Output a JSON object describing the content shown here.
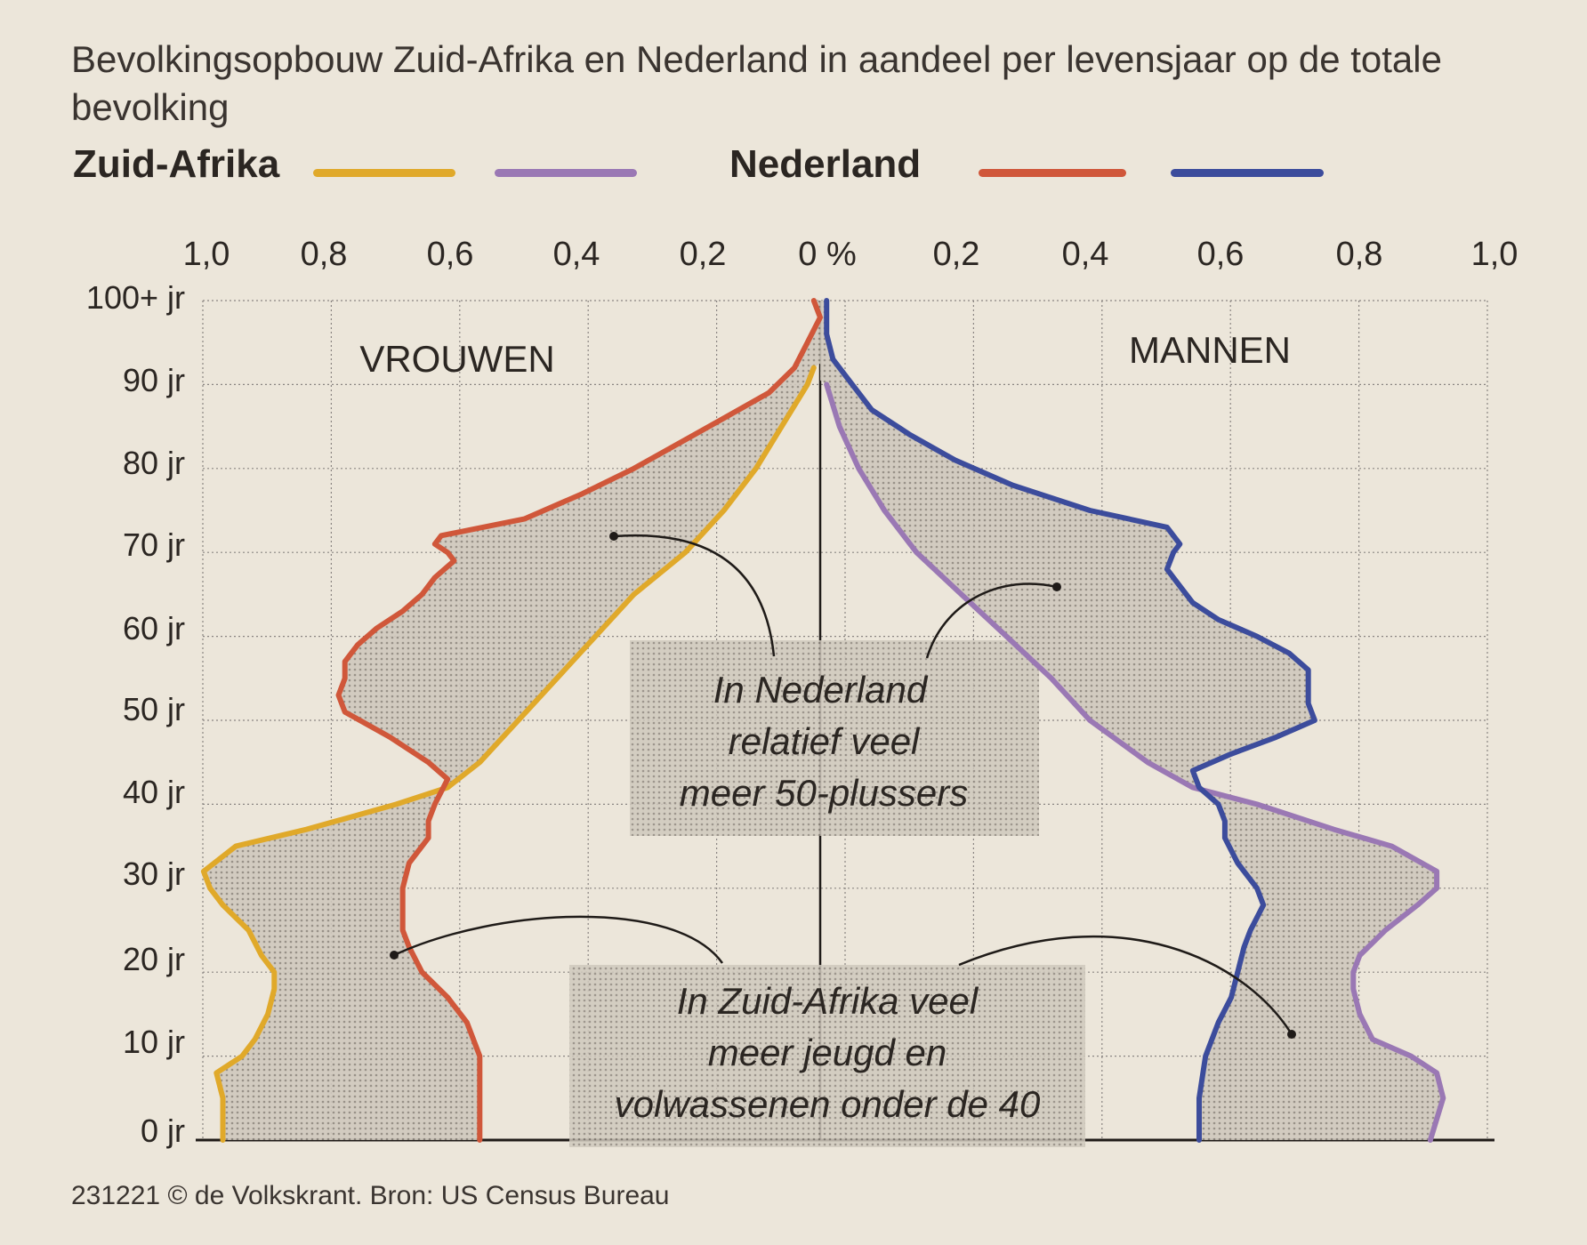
{
  "title": "Bevolkingsopbouw Zuid-Afrika en Nederland in aandeel per levensjaar op de totale bevolking",
  "legend": {
    "group_south_africa": "Zuid-Afrika",
    "group_netherlands": "Nederland"
  },
  "colors": {
    "sa_women": "#e0a92a",
    "sa_men": "#9a78b4",
    "nl_women": "#d0573a",
    "nl_men": "#3c4c9c",
    "grid": "#8a8582",
    "shade": "#c9c3ba"
  },
  "labels": {
    "women": "VROUWEN",
    "men": "MANNEN"
  },
  "annotations": {
    "netherlands_50plus": [
      "In Nederland",
      "relatief veel",
      "meer 50-plussers"
    ],
    "south_africa_youth": [
      "In Zuid-Afrika veel",
      "meer jeugd en",
      "volwassenen onder de 40"
    ]
  },
  "footer": "231221 © de Volkskrant. Bron: US Census Bureau",
  "chart_data": {
    "type": "line",
    "x_tick_labels": [
      "1,0",
      "0,8",
      "0,6",
      "0,4",
      "0,2",
      "0 %",
      "0,2",
      "0,4",
      "0,6",
      "0,8",
      "1,0"
    ],
    "y_tick_labels": [
      "0 jr",
      "10 jr",
      "20 jr",
      "30 jr",
      "40 jr",
      "50 jr",
      "60 jr",
      "70 jr",
      "80 jr",
      "90 jr",
      "100+ jr"
    ],
    "xlim": [
      -1.0,
      1.0
    ],
    "ylim": [
      0,
      100
    ],
    "grid": true,
    "legend_placement": "top",
    "series": [
      {
        "name": "Zuid-Afrika",
        "side": "women",
        "points": [
          [
            0,
            0.93
          ],
          [
            5,
            0.93
          ],
          [
            8,
            0.94
          ],
          [
            10,
            0.9
          ],
          [
            12,
            0.88
          ],
          [
            15,
            0.86
          ],
          [
            18,
            0.85
          ],
          [
            20,
            0.85
          ],
          [
            22,
            0.87
          ],
          [
            25,
            0.89
          ],
          [
            28,
            0.93
          ],
          [
            30,
            0.95
          ],
          [
            32,
            0.96
          ],
          [
            35,
            0.91
          ],
          [
            37,
            0.8
          ],
          [
            40,
            0.66
          ],
          [
            42,
            0.58
          ],
          [
            45,
            0.53
          ],
          [
            50,
            0.47
          ],
          [
            55,
            0.41
          ],
          [
            60,
            0.35
          ],
          [
            65,
            0.29
          ],
          [
            70,
            0.21
          ],
          [
            75,
            0.15
          ],
          [
            80,
            0.1
          ],
          [
            85,
            0.06
          ],
          [
            90,
            0.02
          ],
          [
            92,
            0.01
          ]
        ]
      },
      {
        "name": "",
        "side": "men",
        "points": [
          [
            0,
            0.95
          ],
          [
            5,
            0.97
          ],
          [
            8,
            0.96
          ],
          [
            10,
            0.92
          ],
          [
            12,
            0.86
          ],
          [
            15,
            0.84
          ],
          [
            18,
            0.83
          ],
          [
            20,
            0.83
          ],
          [
            22,
            0.84
          ],
          [
            25,
            0.88
          ],
          [
            28,
            0.93
          ],
          [
            30,
            0.96
          ],
          [
            32,
            0.96
          ],
          [
            35,
            0.89
          ],
          [
            37,
            0.8
          ],
          [
            40,
            0.68
          ],
          [
            42,
            0.58
          ],
          [
            45,
            0.51
          ],
          [
            50,
            0.42
          ],
          [
            55,
            0.36
          ],
          [
            60,
            0.29
          ],
          [
            65,
            0.22
          ],
          [
            70,
            0.15
          ],
          [
            75,
            0.1
          ],
          [
            80,
            0.06
          ],
          [
            85,
            0.03
          ],
          [
            90,
            0.01
          ]
        ]
      },
      {
        "name": "Nederland",
        "side": "women",
        "points": [
          [
            0,
            0.53
          ],
          [
            5,
            0.53
          ],
          [
            10,
            0.53
          ],
          [
            14,
            0.55
          ],
          [
            17,
            0.58
          ],
          [
            20,
            0.62
          ],
          [
            23,
            0.64
          ],
          [
            25,
            0.65
          ],
          [
            28,
            0.65
          ],
          [
            30,
            0.65
          ],
          [
            33,
            0.64
          ],
          [
            36,
            0.61
          ],
          [
            38,
            0.61
          ],
          [
            40,
            0.6
          ],
          [
            43,
            0.58
          ],
          [
            45,
            0.61
          ],
          [
            48,
            0.67
          ],
          [
            51,
            0.74
          ],
          [
            53,
            0.75
          ],
          [
            55,
            0.74
          ],
          [
            57,
            0.74
          ],
          [
            59,
            0.72
          ],
          [
            61,
            0.69
          ],
          [
            63,
            0.65
          ],
          [
            65,
            0.62
          ],
          [
            67,
            0.6
          ],
          [
            69,
            0.57
          ],
          [
            70,
            0.58
          ],
          [
            71,
            0.6
          ],
          [
            72,
            0.59
          ],
          [
            74,
            0.46
          ],
          [
            77,
            0.37
          ],
          [
            80,
            0.29
          ],
          [
            83,
            0.22
          ],
          [
            86,
            0.15
          ],
          [
            89,
            0.08
          ],
          [
            92,
            0.04
          ],
          [
            95,
            0.02
          ],
          [
            98,
            0.0
          ],
          [
            100,
            0.01
          ]
        ]
      },
      {
        "name": "",
        "side": "men",
        "points": [
          [
            0,
            0.59
          ],
          [
            5,
            0.59
          ],
          [
            10,
            0.6
          ],
          [
            14,
            0.62
          ],
          [
            17,
            0.64
          ],
          [
            20,
            0.65
          ],
          [
            23,
            0.66
          ],
          [
            25,
            0.67
          ],
          [
            28,
            0.69
          ],
          [
            30,
            0.68
          ],
          [
            33,
            0.65
          ],
          [
            36,
            0.63
          ],
          [
            38,
            0.63
          ],
          [
            40,
            0.62
          ],
          [
            42,
            0.59
          ],
          [
            44,
            0.58
          ],
          [
            46,
            0.64
          ],
          [
            48,
            0.71
          ],
          [
            50,
            0.77
          ],
          [
            52,
            0.76
          ],
          [
            54,
            0.76
          ],
          [
            56,
            0.76
          ],
          [
            58,
            0.73
          ],
          [
            60,
            0.68
          ],
          [
            62,
            0.62
          ],
          [
            64,
            0.58
          ],
          [
            66,
            0.56
          ],
          [
            68,
            0.54
          ],
          [
            70,
            0.55
          ],
          [
            71,
            0.56
          ],
          [
            73,
            0.54
          ],
          [
            75,
            0.42
          ],
          [
            78,
            0.3
          ],
          [
            81,
            0.21
          ],
          [
            84,
            0.14
          ],
          [
            87,
            0.08
          ],
          [
            90,
            0.05
          ],
          [
            93,
            0.02
          ],
          [
            96,
            0.01
          ],
          [
            100,
            0.01
          ]
        ]
      }
    ]
  }
}
